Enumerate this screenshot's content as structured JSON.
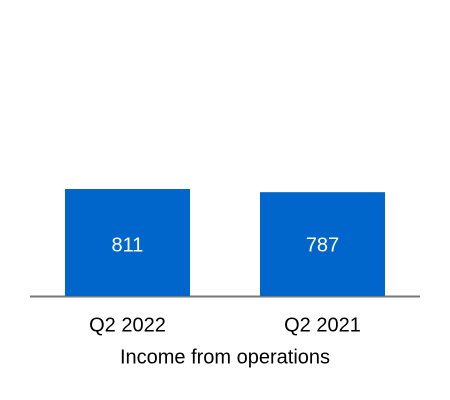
{
  "chart_data": {
    "type": "bar",
    "x_label": "Income from operations",
    "categories": [
      "Q2 2022",
      "Q2 2021"
    ],
    "values": [
      811,
      787
    ],
    "color": "#0066cc"
  }
}
